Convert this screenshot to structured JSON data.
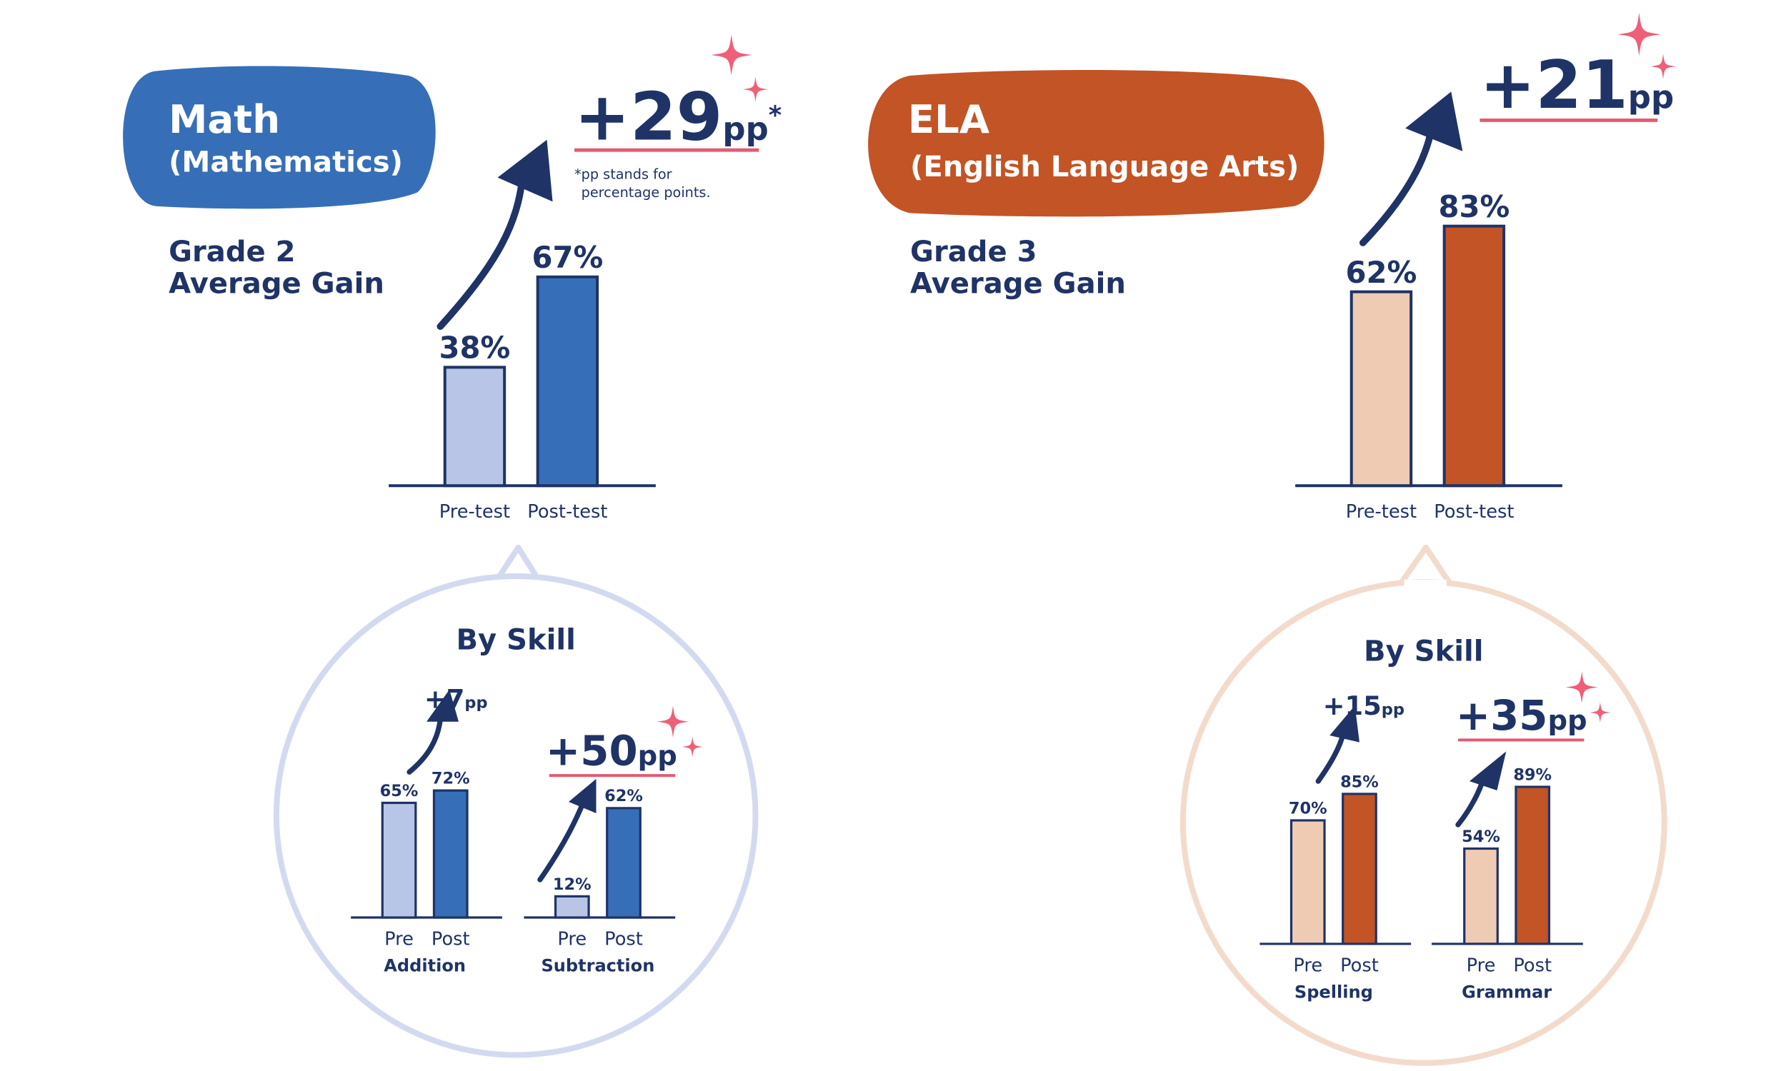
{
  "colors": {
    "navy": "#1f3366",
    "math_blue": "#366fb8",
    "math_light": "#b8c5e6",
    "ela_orange": "#c25426",
    "ela_light": "#f0cbb4",
    "sparkle": "#ef5f77",
    "math_bubble": "#d3daf0",
    "ela_bubble": "#f3dbcc",
    "underline": "#e35b70"
  },
  "math": {
    "title": "Math",
    "subtitle": "(Mathematics)",
    "grade_line1": "Grade 2",
    "grade_line2": "Average Gain",
    "gain_value": "+29",
    "gain_unit": "pp",
    "gain_asterisk": "*",
    "footnote_line1": "*pp stands for",
    "footnote_line2": "percentage points.",
    "by_skill": "By Skill"
  },
  "ela": {
    "title": "ELA",
    "subtitle": "(English Language Arts)",
    "grade_line1": "Grade 3",
    "grade_line2": "Average Gain",
    "gain_value": "+21",
    "gain_unit": "pp",
    "by_skill": "By Skill"
  },
  "chart_data": [
    {
      "type": "bar",
      "title": "Grade 2 Average Gain",
      "categories": [
        "Pre-test",
        "Post-test"
      ],
      "values": [
        38,
        67
      ],
      "labels": [
        "38%",
        "67%"
      ],
      "gain": "+29pp",
      "ylim": [
        0,
        100
      ]
    },
    {
      "type": "bar",
      "title": "Addition",
      "categories": [
        "Pre",
        "Post"
      ],
      "values": [
        65,
        72
      ],
      "labels": [
        "65%",
        "72%"
      ],
      "gain_value": "+7",
      "gain_unit": "pp",
      "ylim": [
        0,
        100
      ]
    },
    {
      "type": "bar",
      "title": "Subtraction",
      "categories": [
        "Pre",
        "Post"
      ],
      "values": [
        12,
        62
      ],
      "labels": [
        "12%",
        "62%"
      ],
      "gain_value": "+50",
      "gain_unit": "pp",
      "ylim": [
        0,
        100
      ]
    },
    {
      "type": "bar",
      "title": "Grade 3 Average Gain",
      "categories": [
        "Pre-test",
        "Post-test"
      ],
      "values": [
        62,
        83
      ],
      "labels": [
        "62%",
        "83%"
      ],
      "gain": "+21pp",
      "ylim": [
        0,
        100
      ]
    },
    {
      "type": "bar",
      "title": "Spelling",
      "categories": [
        "Pre",
        "Post"
      ],
      "values": [
        70,
        85
      ],
      "labels": [
        "70%",
        "85%"
      ],
      "gain_value": "+15",
      "gain_unit": "pp",
      "ylim": [
        0,
        100
      ]
    },
    {
      "type": "bar",
      "title": "Grammar",
      "categories": [
        "Pre",
        "Post"
      ],
      "values": [
        54,
        89
      ],
      "labels": [
        "54%",
        "89%"
      ],
      "gain_value": "+35",
      "gain_unit": "pp",
      "ylim": [
        0,
        100
      ]
    }
  ]
}
